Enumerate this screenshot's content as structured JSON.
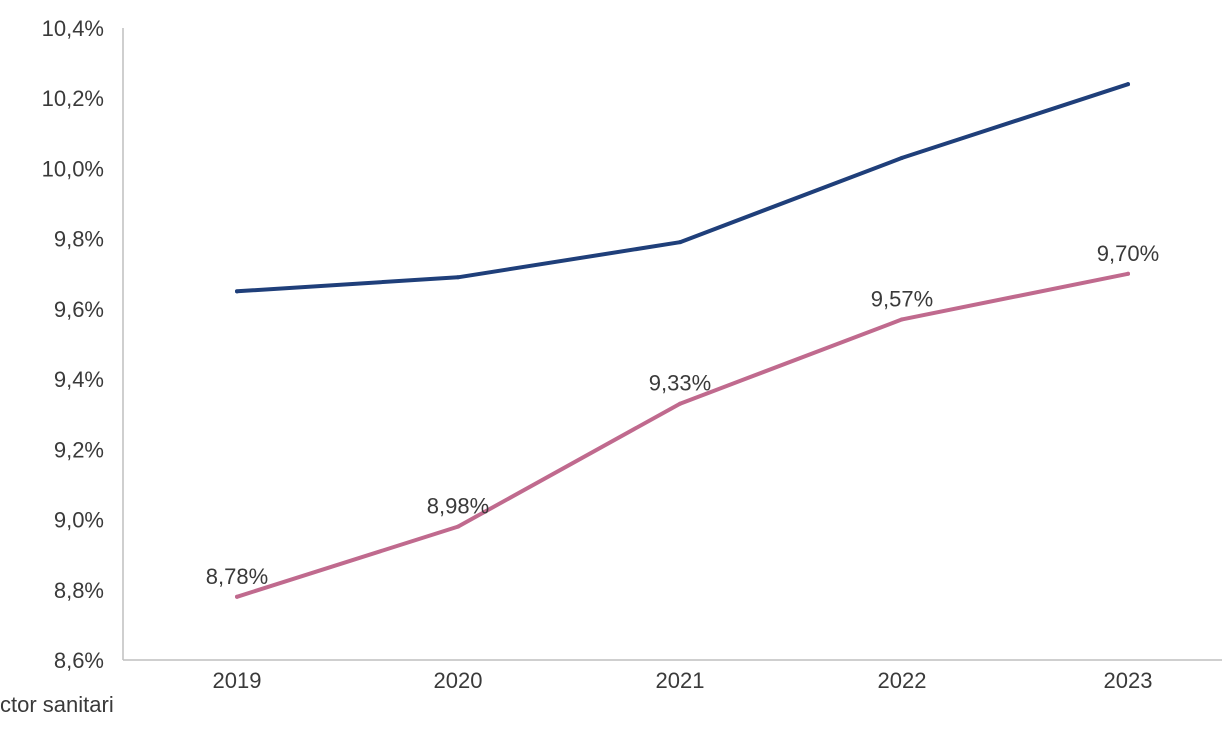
{
  "chart_data": {
    "type": "line",
    "categories": [
      "2019",
      "2020",
      "2021",
      "2022",
      "2023"
    ],
    "series": [
      {
        "values": [
          9.65,
          9.69,
          9.79,
          10.03,
          10.24
        ],
        "color": "#1f3f7a",
        "show_labels": false
      },
      {
        "values": [
          8.78,
          8.98,
          9.33,
          9.57,
          9.7
        ],
        "color": "#c06a8e",
        "show_labels": true,
        "labels": [
          "8,78%",
          "8,98%",
          "9,33%",
          "9,57%",
          "9,70%"
        ]
      }
    ],
    "ylim": [
      8.6,
      10.4
    ],
    "yticks": [
      {
        "value": 10.4,
        "label": "10,4%"
      },
      {
        "value": 10.2,
        "label": "10,2%"
      },
      {
        "value": 10.0,
        "label": "10,0%"
      },
      {
        "value": 9.8,
        "label": "9,8%"
      },
      {
        "value": 9.6,
        "label": "9,6%"
      },
      {
        "value": 9.4,
        "label": "9,4%"
      },
      {
        "value": 9.2,
        "label": "9,2%"
      },
      {
        "value": 9.0,
        "label": "9,0%"
      },
      {
        "value": 8.8,
        "label": "8,8%"
      },
      {
        "value": 8.6,
        "label": "8,6%"
      }
    ],
    "grid": false,
    "axis_color": "#bfbfbf"
  },
  "legend_fragment": "ctor sanitari"
}
